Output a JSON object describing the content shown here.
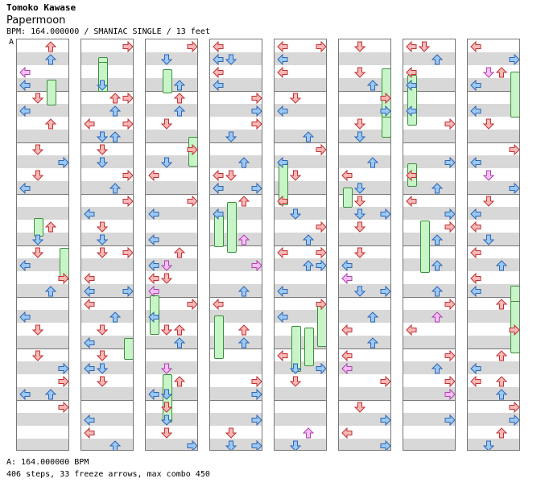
{
  "song": {
    "artist": "Tomoko Kawase",
    "title": "Papermoon",
    "info": "BPM: 164.000000 / SMANIAC SINGLE / 13 feet",
    "marker": "A"
  },
  "footer": {
    "bpm": "A: 164.000000 BPM",
    "stats": "406 steps, 33 freeze arrows, max combo 450"
  },
  "colors": {
    "red_arrow": "#f8b8b8",
    "red_outline": "#c03030",
    "blue_arrow": "#9cc8f4",
    "blue_outline": "#2a66b5",
    "pink_arrow": "#f8c0f8",
    "pink_outline": "#b040b0",
    "freeze_fill": "#c8f5c8",
    "freeze_outline": "#3b8f3b",
    "stripe": "#d8d8d8"
  }
}
